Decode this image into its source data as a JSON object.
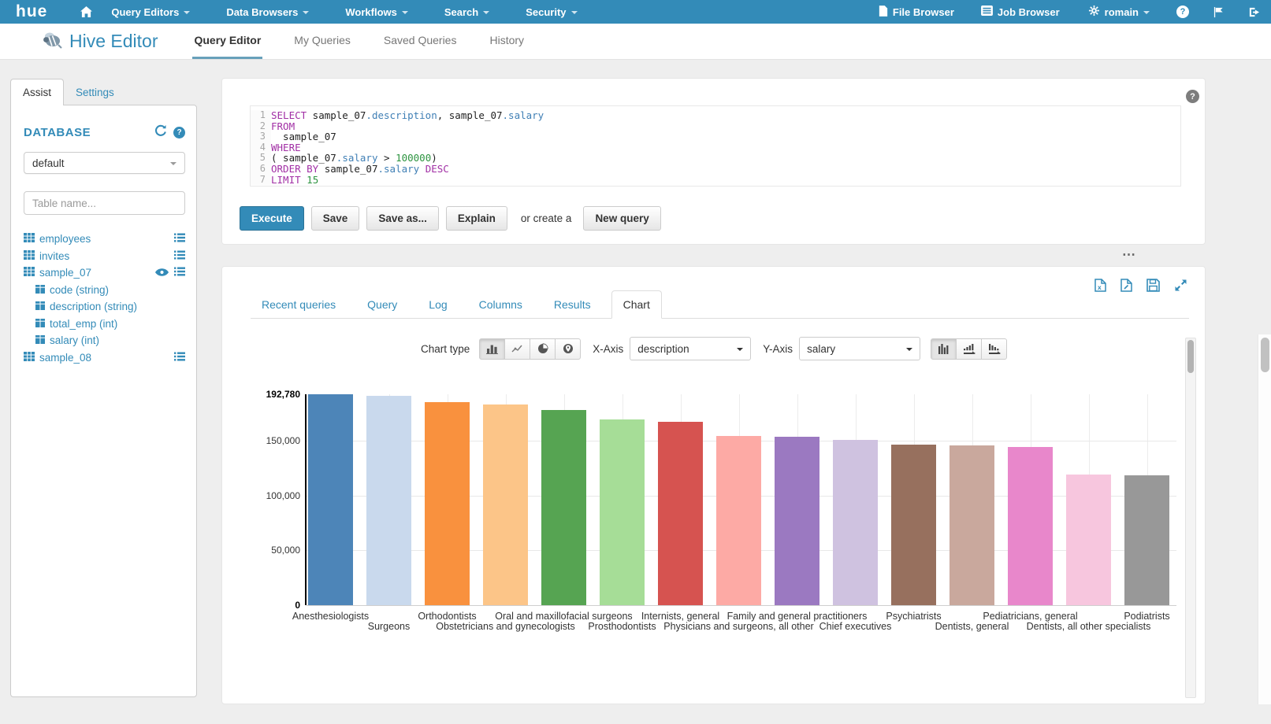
{
  "theme": {
    "accent": "#338bb8",
    "page_bg": "#eeeeee"
  },
  "navbar": {
    "brand": "hue",
    "items": [
      {
        "label": "Query Editors"
      },
      {
        "label": "Data Browsers"
      },
      {
        "label": "Workflows"
      },
      {
        "label": "Search"
      },
      {
        "label": "Security"
      }
    ],
    "file_browser": "File Browser",
    "job_browser": "Job Browser",
    "user": "romain"
  },
  "header": {
    "app_title": "Hive Editor",
    "tabs": [
      {
        "label": "Query Editor",
        "active": true
      },
      {
        "label": "My Queries",
        "active": false
      },
      {
        "label": "Saved Queries",
        "active": false
      },
      {
        "label": "History",
        "active": false
      }
    ]
  },
  "sidebar": {
    "tab_assist": "Assist",
    "tab_settings": "Settings",
    "database_label": "DATABASE",
    "database_value": "default",
    "table_filter_placeholder": "Table name...",
    "tables": [
      {
        "name": "employees"
      },
      {
        "name": "invites"
      },
      {
        "name": "sample_07"
      },
      {
        "name": "sample_08"
      }
    ],
    "sample_07_columns": [
      "code (string)",
      "description (string)",
      "total_emp (int)",
      "salary (int)"
    ]
  },
  "editor": {
    "sql_lines": [
      {
        "n": "1",
        "segs": [
          [
            "k",
            "SELECT"
          ],
          [
            "t",
            " sample_07"
          ],
          [
            "c",
            ".description"
          ],
          [
            "t",
            ", sample_07"
          ],
          [
            "c",
            ".salary"
          ]
        ]
      },
      {
        "n": "2",
        "segs": [
          [
            "k",
            "FROM"
          ]
        ]
      },
      {
        "n": "3",
        "segs": [
          [
            "t",
            "  sample_07"
          ]
        ]
      },
      {
        "n": "4",
        "segs": [
          [
            "k",
            "WHERE"
          ]
        ]
      },
      {
        "n": "5",
        "segs": [
          [
            "t",
            "( sample_07"
          ],
          [
            "c",
            ".salary"
          ],
          [
            "t",
            " > "
          ],
          [
            "n",
            "100000"
          ],
          [
            "t",
            ")"
          ]
        ]
      },
      {
        "n": "6",
        "segs": [
          [
            "k",
            "ORDER BY"
          ],
          [
            "t",
            " sample_07"
          ],
          [
            "c",
            ".salary"
          ],
          [
            "k",
            " DESC"
          ]
        ]
      },
      {
        "n": "7",
        "segs": [
          [
            "k",
            "LIMIT"
          ],
          [
            "n",
            " 15"
          ]
        ]
      }
    ],
    "execute": "Execute",
    "save": "Save",
    "save_as": "Save as...",
    "explain": "Explain",
    "or_create_a": "or create a",
    "new_query": "New query"
  },
  "results": {
    "tabs": [
      {
        "label": "Recent queries",
        "active": false
      },
      {
        "label": "Query",
        "active": false
      },
      {
        "label": "Log",
        "active": false
      },
      {
        "label": "Columns",
        "active": false
      },
      {
        "label": "Results",
        "active": false
      },
      {
        "label": "Chart",
        "active": true
      }
    ],
    "chart_type_label": "Chart type",
    "x_axis_label": "X-Axis",
    "x_axis_value": "description",
    "y_axis_label": "Y-Axis",
    "y_axis_value": "salary"
  },
  "chart_data": {
    "type": "bar",
    "title": "",
    "xlabel": "description",
    "ylabel": "salary",
    "ylim": [
      0,
      192780
    ],
    "grid": true,
    "legend": "none",
    "categories": [
      "Anesthesiologists",
      "Surgeons",
      "Orthodontists",
      "Obstetricians and gynecologists",
      "Oral and maxillofacial surgeons",
      "Prosthodontists",
      "Internists, general",
      "Physicians and surgeons, all other",
      "Family and general practitioners",
      "Chief executives",
      "Psychiatrists",
      "Dentists, general",
      "Pediatricians, general",
      "Dentists, all other specialists",
      "Podiatrists"
    ],
    "values": [
      192780,
      191410,
      185340,
      183600,
      178440,
      169810,
      167270,
      155000,
      153640,
      151370,
      147000,
      146100,
      144600,
      119400,
      118500
    ],
    "bar_colors": [
      "#4d85b8",
      "#c9d9ed",
      "#f9913e",
      "#fcc588",
      "#56a452",
      "#a6dd97",
      "#d65350",
      "#fdaaa5",
      "#9b79c1",
      "#cfc2e0",
      "#97705e",
      "#c9a89d",
      "#e887cb",
      "#f7c6de",
      "#989898"
    ],
    "y_ticks": [
      {
        "v": 192780,
        "label": "192,780",
        "bold": true
      },
      {
        "v": 150000,
        "label": "150,000",
        "bold": false
      },
      {
        "v": 100000,
        "label": "100,000",
        "bold": false
      },
      {
        "v": 50000,
        "label": "50,000",
        "bold": false
      },
      {
        "v": 0,
        "label": "0",
        "bold": true
      }
    ]
  }
}
